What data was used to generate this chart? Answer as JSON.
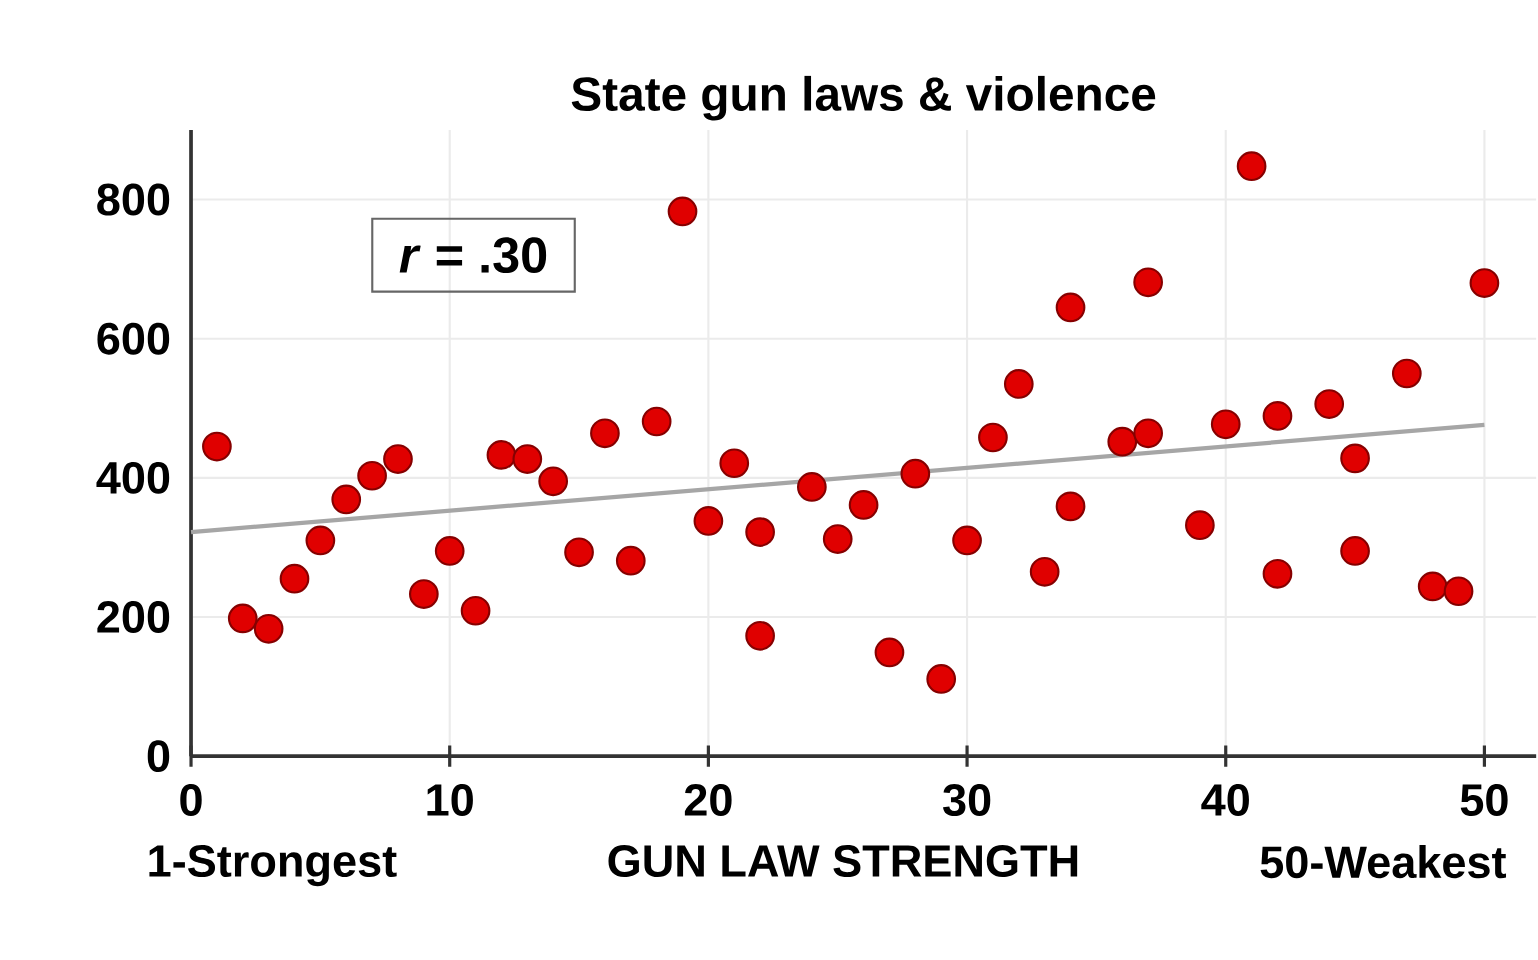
{
  "chart_data": {
    "type": "scatter",
    "title": "State gun laws & violence",
    "xlabel": "GUN LAW STRENGTH",
    "annotations": [
      "*r* = .30",
      "1-Strongest",
      "50-Weakest"
    ],
    "xlim": [
      0,
      52
    ],
    "xticks": [
      0,
      10,
      20,
      30,
      40,
      50
    ],
    "ylim": [
      0,
      900
    ],
    "yticks": [
      0,
      200,
      400,
      600,
      800
    ],
    "grid": true,
    "marker": "circle",
    "series": [
      {
        "color": "#e00000",
        "x": [
          1,
          2,
          3,
          4,
          5,
          6,
          7,
          8,
          9,
          10,
          11,
          12,
          13,
          14,
          15,
          16,
          17,
          18,
          19,
          20,
          21,
          22,
          22,
          24,
          25,
          26,
          27,
          28,
          29,
          30,
          31,
          32,
          33,
          34,
          34,
          36,
          37,
          37,
          39,
          40,
          41,
          42,
          42,
          44,
          45,
          45,
          47,
          48,
          49,
          50
        ],
        "values": [
          445,
          198,
          183,
          255,
          310,
          369,
          403,
          427,
          233,
          295,
          209,
          433,
          427,
          395,
          293,
          464,
          281,
          481,
          783,
          338,
          421,
          322,
          173,
          387,
          312,
          361,
          149,
          406,
          111,
          310,
          458,
          535,
          265,
          645,
          359,
          452,
          681,
          464,
          332,
          477,
          848,
          489,
          262,
          506,
          428,
          295,
          550,
          244,
          237,
          680
        ]
      },
      {
        "type": "line",
        "color": "#a6a6a6",
        "marker": "none",
        "x": [
          0,
          50
        ],
        "values": [
          322,
          476
        ]
      }
    ]
  }
}
